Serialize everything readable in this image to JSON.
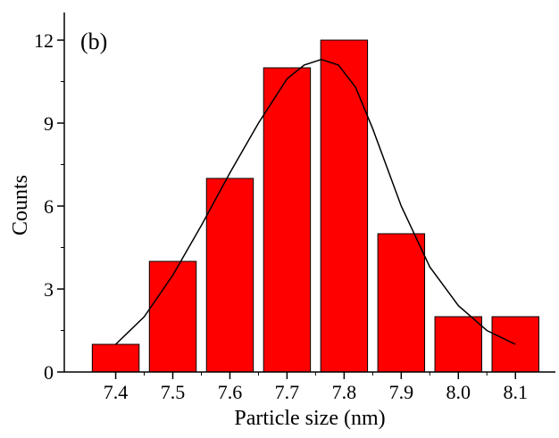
{
  "chart_data": {
    "type": "bar",
    "panel_label": "(b)",
    "xlabel": "Particle size (nm)",
    "ylabel": "Counts",
    "categories": [
      "7.4",
      "7.5",
      "7.6",
      "7.7",
      "7.8",
      "7.9",
      "8.0",
      "8.1"
    ],
    "values": [
      1,
      4,
      7,
      11,
      12,
      5,
      2,
      2
    ],
    "ylim": [
      0,
      13
    ],
    "yticks": [
      0,
      3,
      6,
      9,
      12
    ],
    "xlim": [
      7.31,
      8.17
    ],
    "bar_color": "#ff0000",
    "fit_curve": {
      "type": "gaussian",
      "x": [
        7.4,
        7.45,
        7.5,
        7.55,
        7.6,
        7.65,
        7.7,
        7.73,
        7.76,
        7.79,
        7.82,
        7.85,
        7.9,
        7.95,
        8.0,
        8.05,
        8.1
      ],
      "y": [
        1.0,
        2.0,
        3.5,
        5.3,
        7.2,
        9.0,
        10.6,
        11.1,
        11.3,
        11.1,
        10.3,
        8.8,
        6.0,
        3.8,
        2.4,
        1.5,
        1.0
      ]
    },
    "grid": false,
    "legend": "none"
  }
}
